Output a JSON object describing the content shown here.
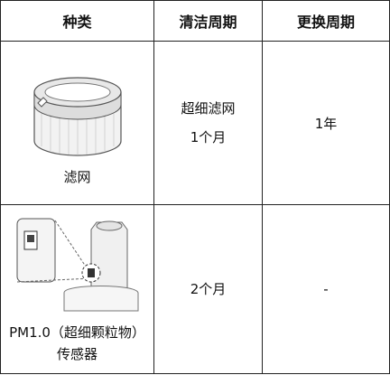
{
  "table": {
    "header": [
      "种类",
      "清洁周期",
      "更换周期"
    ],
    "rows": [
      {
        "type": "滤网",
        "cleaning": [
          "超细滤网",
          "1个月"
        ],
        "replacement": "1年"
      },
      {
        "type": "PM1.0（超细颗粒物）传感器",
        "cleaning": [
          "2个月"
        ],
        "replacement": "-"
      }
    ]
  }
}
